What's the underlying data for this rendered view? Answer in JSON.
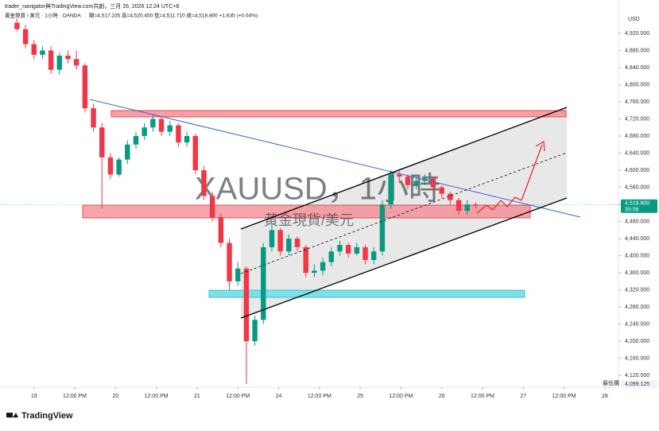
{
  "chart_data": {
    "type": "candlestick",
    "watermark": "trader_navigator與TradingView.com共創，三月 26, 2026 12:24 UTC+8",
    "symbol_line": "黃金現貨 / 美元 · 1小時 · OANDA",
    "ohlc_line": "開=4,517.235  高=4,520.450  低=4,511.710  收=4,518.800  +1.635 (+0.04%)",
    "big_label": "XAUUSD，1小時",
    "sub_label": "黃金現貨/美元",
    "currency": "USD",
    "brand": "TradingView",
    "up_color": "#089981",
    "down_color": "#f23645",
    "x": [
      -5,
      -2.5,
      0,
      2.5,
      5,
      7.5,
      10,
      12.5,
      15,
      17.5,
      20,
      22.5,
      25,
      27.5,
      30,
      32.5,
      35,
      37.5,
      40,
      42.5,
      45,
      47.5,
      50,
      52.5,
      55,
      57.5,
      60,
      62.5,
      65,
      67.5,
      70,
      72.5,
      75,
      77.5,
      80,
      82.5,
      85,
      87.5,
      90,
      92.5,
      95,
      97.5,
      100,
      102.5,
      105,
      107.5,
      110,
      112.5,
      115,
      117.5,
      120,
      122.5,
      125,
      127.5,
      130
    ],
    "open": [
      4945,
      4930,
      4895,
      4870,
      4880,
      4835,
      4868,
      4860,
      4845,
      4745,
      4700,
      4630,
      4590,
      4625,
      4660,
      4680,
      4700,
      4720,
      4690,
      4705,
      4665,
      4680,
      4600,
      4540,
      4490,
      4430,
      4340,
      4370,
      4200,
      4250,
      4420,
      4460,
      4410,
      4440,
      4420,
      4360,
      4365,
      4385,
      4410,
      4425,
      4405,
      4420,
      4390,
      4410,
      4520,
      4590,
      4585,
      4565,
      4575,
      4580,
      4560,
      4545,
      4530,
      4505,
      4520
    ],
    "high": [
      4955,
      4940,
      4905,
      4890,
      4890,
      4875,
      4880,
      4880,
      4850,
      4755,
      4710,
      4640,
      4630,
      4670,
      4690,
      4710,
      4730,
      4725,
      4715,
      4710,
      4690,
      4685,
      4610,
      4550,
      4500,
      4440,
      4385,
      4375,
      4260,
      4430,
      4475,
      4465,
      4450,
      4445,
      4425,
      4380,
      4395,
      4420,
      4435,
      4430,
      4430,
      4425,
      4420,
      4530,
      4600,
      4600,
      4590,
      4585,
      4590,
      4585,
      4565,
      4550,
      4535,
      4530,
      4525
    ],
    "low": [
      4925,
      4885,
      4860,
      4860,
      4825,
      4825,
      4850,
      4835,
      4735,
      4690,
      4510,
      4580,
      4585,
      4615,
      4650,
      4670,
      4690,
      4680,
      4680,
      4655,
      4655,
      4590,
      4530,
      4480,
      4420,
      4320,
      4330,
      4100,
      4190,
      4240,
      4410,
      4400,
      4400,
      4410,
      4350,
      4350,
      4355,
      4375,
      4400,
      4395,
      4400,
      4380,
      4380,
      4400,
      4510,
      4570,
      4555,
      4555,
      4565,
      4550,
      4535,
      4520,
      4495,
      4495,
      4510
    ],
    "close": [
      4930,
      4895,
      4870,
      4880,
      4835,
      4868,
      4860,
      4845,
      4745,
      4700,
      4630,
      4590,
      4625,
      4660,
      4680,
      4700,
      4720,
      4690,
      4705,
      4665,
      4680,
      4600,
      4540,
      4490,
      4430,
      4340,
      4370,
      4200,
      4250,
      4420,
      4460,
      4410,
      4440,
      4420,
      4360,
      4365,
      4385,
      4410,
      4425,
      4405,
      4420,
      4390,
      4410,
      4520,
      4590,
      4585,
      4565,
      4575,
      4580,
      4560,
      4545,
      4530,
      4505,
      4520,
      4518.8
    ],
    "xlim": [
      -10,
      172
    ],
    "ylim": [
      4096,
      4961
    ],
    "xticks": [
      {
        "value": 0,
        "label": "19"
      },
      {
        "value": 12,
        "label": "12:00 PM"
      },
      {
        "value": 24,
        "label": "20"
      },
      {
        "value": 36,
        "label": "12:00 PM"
      },
      {
        "value": 48,
        "label": "21"
      },
      {
        "value": 60,
        "label": "12:00 PM"
      },
      {
        "value": 72,
        "label": "24"
      },
      {
        "value": 84,
        "label": "12:00 PM"
      },
      {
        "value": 96,
        "label": "25"
      },
      {
        "value": 108,
        "label": "12:00 PM"
      },
      {
        "value": 120,
        "label": "26"
      },
      {
        "value": 132,
        "label": "12:00 PM"
      },
      {
        "value": 144,
        "label": "27"
      },
      {
        "value": 156,
        "label": "12:00 PM"
      },
      {
        "value": 168,
        "label": "28"
      }
    ],
    "yticks": [
      {
        "value": 4120,
        "label": "4,120.000"
      },
      {
        "value": 4160,
        "label": "4,160.000"
      },
      {
        "value": 4200,
        "label": "4,200.000"
      },
      {
        "value": 4240,
        "label": "4,240.000"
      },
      {
        "value": 4280,
        "label": "4,280.000"
      },
      {
        "value": 4320,
        "label": "4,320.000"
      },
      {
        "value": 4360,
        "label": "4,360.000"
      },
      {
        "value": 4400,
        "label": "4,400.000"
      },
      {
        "value": 4440,
        "label": "4,440.000"
      },
      {
        "value": 4480,
        "label": "4,480.000"
      },
      {
        "value": 4520,
        "label": "4,520.000"
      },
      {
        "value": 4560,
        "label": "4,560.000"
      },
      {
        "value": 4600,
        "label": "4,600.000"
      },
      {
        "value": 4640,
        "label": "4,640.000"
      },
      {
        "value": 4680,
        "label": "4,680.000"
      },
      {
        "value": 4720,
        "label": "4,720.000"
      },
      {
        "value": 4760,
        "label": "4,760.000"
      },
      {
        "value": 4800,
        "label": "4,800.000"
      },
      {
        "value": 4840,
        "label": "4,840.000"
      },
      {
        "value": 4880,
        "label": "4,880.000"
      },
      {
        "value": 4920,
        "label": "4,920.000"
      }
    ],
    "last_price": {
      "value": 4518.8,
      "label": "4,518.800",
      "countdown": "35:06",
      "color": "#089981"
    },
    "low_marker": {
      "value": 4099.125,
      "label": "4,099.125",
      "title": "最低價"
    }
  }
}
